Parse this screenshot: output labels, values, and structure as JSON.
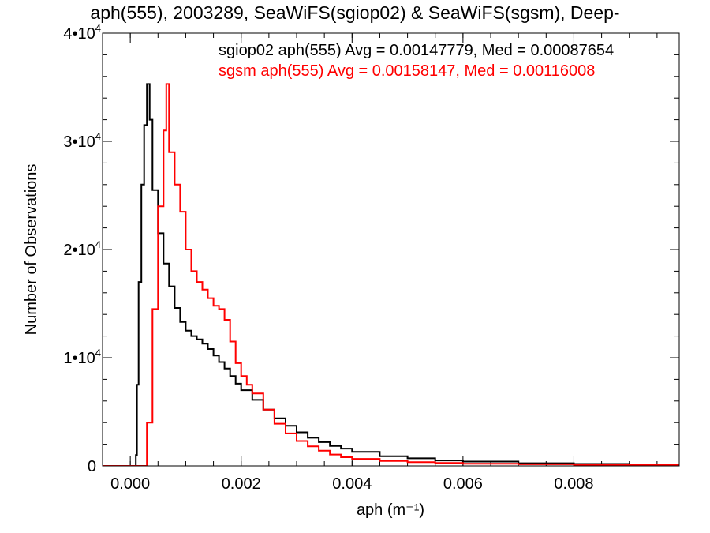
{
  "chart_data": {
    "type": "line",
    "title": "aph(555), 2003289, SeaWiFS(sgiop02) & SeaWiFS(sgsm), Deep-",
    "xlabel": "aph (m⁻¹)",
    "ylabel": "Number of Observations",
    "xlim": [
      -0.0005,
      0.0099
    ],
    "ylim": [
      0,
      40000
    ],
    "grid": false,
    "x_ticks": [
      {
        "value": 0.0,
        "label": "0.000"
      },
      {
        "value": 0.002,
        "label": "0.002"
      },
      {
        "value": 0.004,
        "label": "0.004"
      },
      {
        "value": 0.006,
        "label": "0.006"
      },
      {
        "value": 0.008,
        "label": "0.008"
      }
    ],
    "y_ticks": [
      {
        "value": 0,
        "label": "0"
      },
      {
        "value": 10000,
        "label": "1•10",
        "sup": "4"
      },
      {
        "value": 20000,
        "label": "2•10",
        "sup": "4"
      },
      {
        "value": 30000,
        "label": "3•10",
        "sup": "4"
      },
      {
        "value": 40000,
        "label": "4•10",
        "sup": "4"
      }
    ],
    "annotations": [
      {
        "text": "sgiop02 aph(555) Avg = 0.00147779, Med = 0.00087654",
        "color": "#000000"
      },
      {
        "text": "sgsm aph(555) Avg = 0.00158147, Med = 0.00116008",
        "color": "#ff0000"
      }
    ],
    "series": [
      {
        "color": "#000000",
        "x": [
          -0.0005,
          0.0,
          0.0001,
          0.00012,
          0.00015,
          0.0002,
          0.00025,
          0.0003,
          0.00035,
          0.0004,
          0.0005,
          0.0006,
          0.0007,
          0.0008,
          0.0009,
          0.001,
          0.0011,
          0.0012,
          0.0013,
          0.0014,
          0.0015,
          0.0016,
          0.0017,
          0.0018,
          0.0019,
          0.002,
          0.0022,
          0.0024,
          0.0026,
          0.0028,
          0.003,
          0.0032,
          0.0034,
          0.0036,
          0.0038,
          0.004,
          0.0045,
          0.005,
          0.0055,
          0.006,
          0.007,
          0.008,
          0.009,
          0.0099
        ],
        "y": [
          0,
          0,
          1000,
          7500,
          17000,
          26000,
          31500,
          35300,
          32000,
          25500,
          21500,
          18700,
          16600,
          14600,
          13300,
          12500,
          12000,
          11700,
          11300,
          10800,
          10200,
          9600,
          9000,
          8300,
          7600,
          7000,
          6100,
          5200,
          4400,
          3700,
          3100,
          2600,
          2200,
          1850,
          1600,
          1300,
          900,
          700,
          500,
          400,
          250,
          180,
          120,
          100
        ]
      },
      {
        "color": "#ff0000",
        "x": [
          -0.0005,
          0.0001,
          0.0002,
          0.0003,
          0.0004,
          0.0005,
          0.0006,
          0.00065,
          0.0007,
          0.0008,
          0.0009,
          0.001,
          0.0011,
          0.0012,
          0.0013,
          0.0014,
          0.0015,
          0.0016,
          0.0017,
          0.0018,
          0.0019,
          0.002,
          0.0021,
          0.0022,
          0.0024,
          0.0026,
          0.0028,
          0.003,
          0.0032,
          0.0034,
          0.0036,
          0.0038,
          0.004,
          0.0045,
          0.005,
          0.0055,
          0.006,
          0.007,
          0.008,
          0.009,
          0.0099
        ],
        "y": [
          0,
          0,
          0,
          4000,
          14500,
          24000,
          31000,
          35300,
          29000,
          26000,
          23500,
          20000,
          18000,
          17000,
          16300,
          15500,
          14800,
          14500,
          13500,
          11500,
          9500,
          8300,
          7500,
          6700,
          5200,
          3900,
          3000,
          2300,
          1800,
          1400,
          1050,
          800,
          650,
          450,
          350,
          280,
          200,
          150,
          100,
          80,
          60
        ]
      }
    ]
  }
}
